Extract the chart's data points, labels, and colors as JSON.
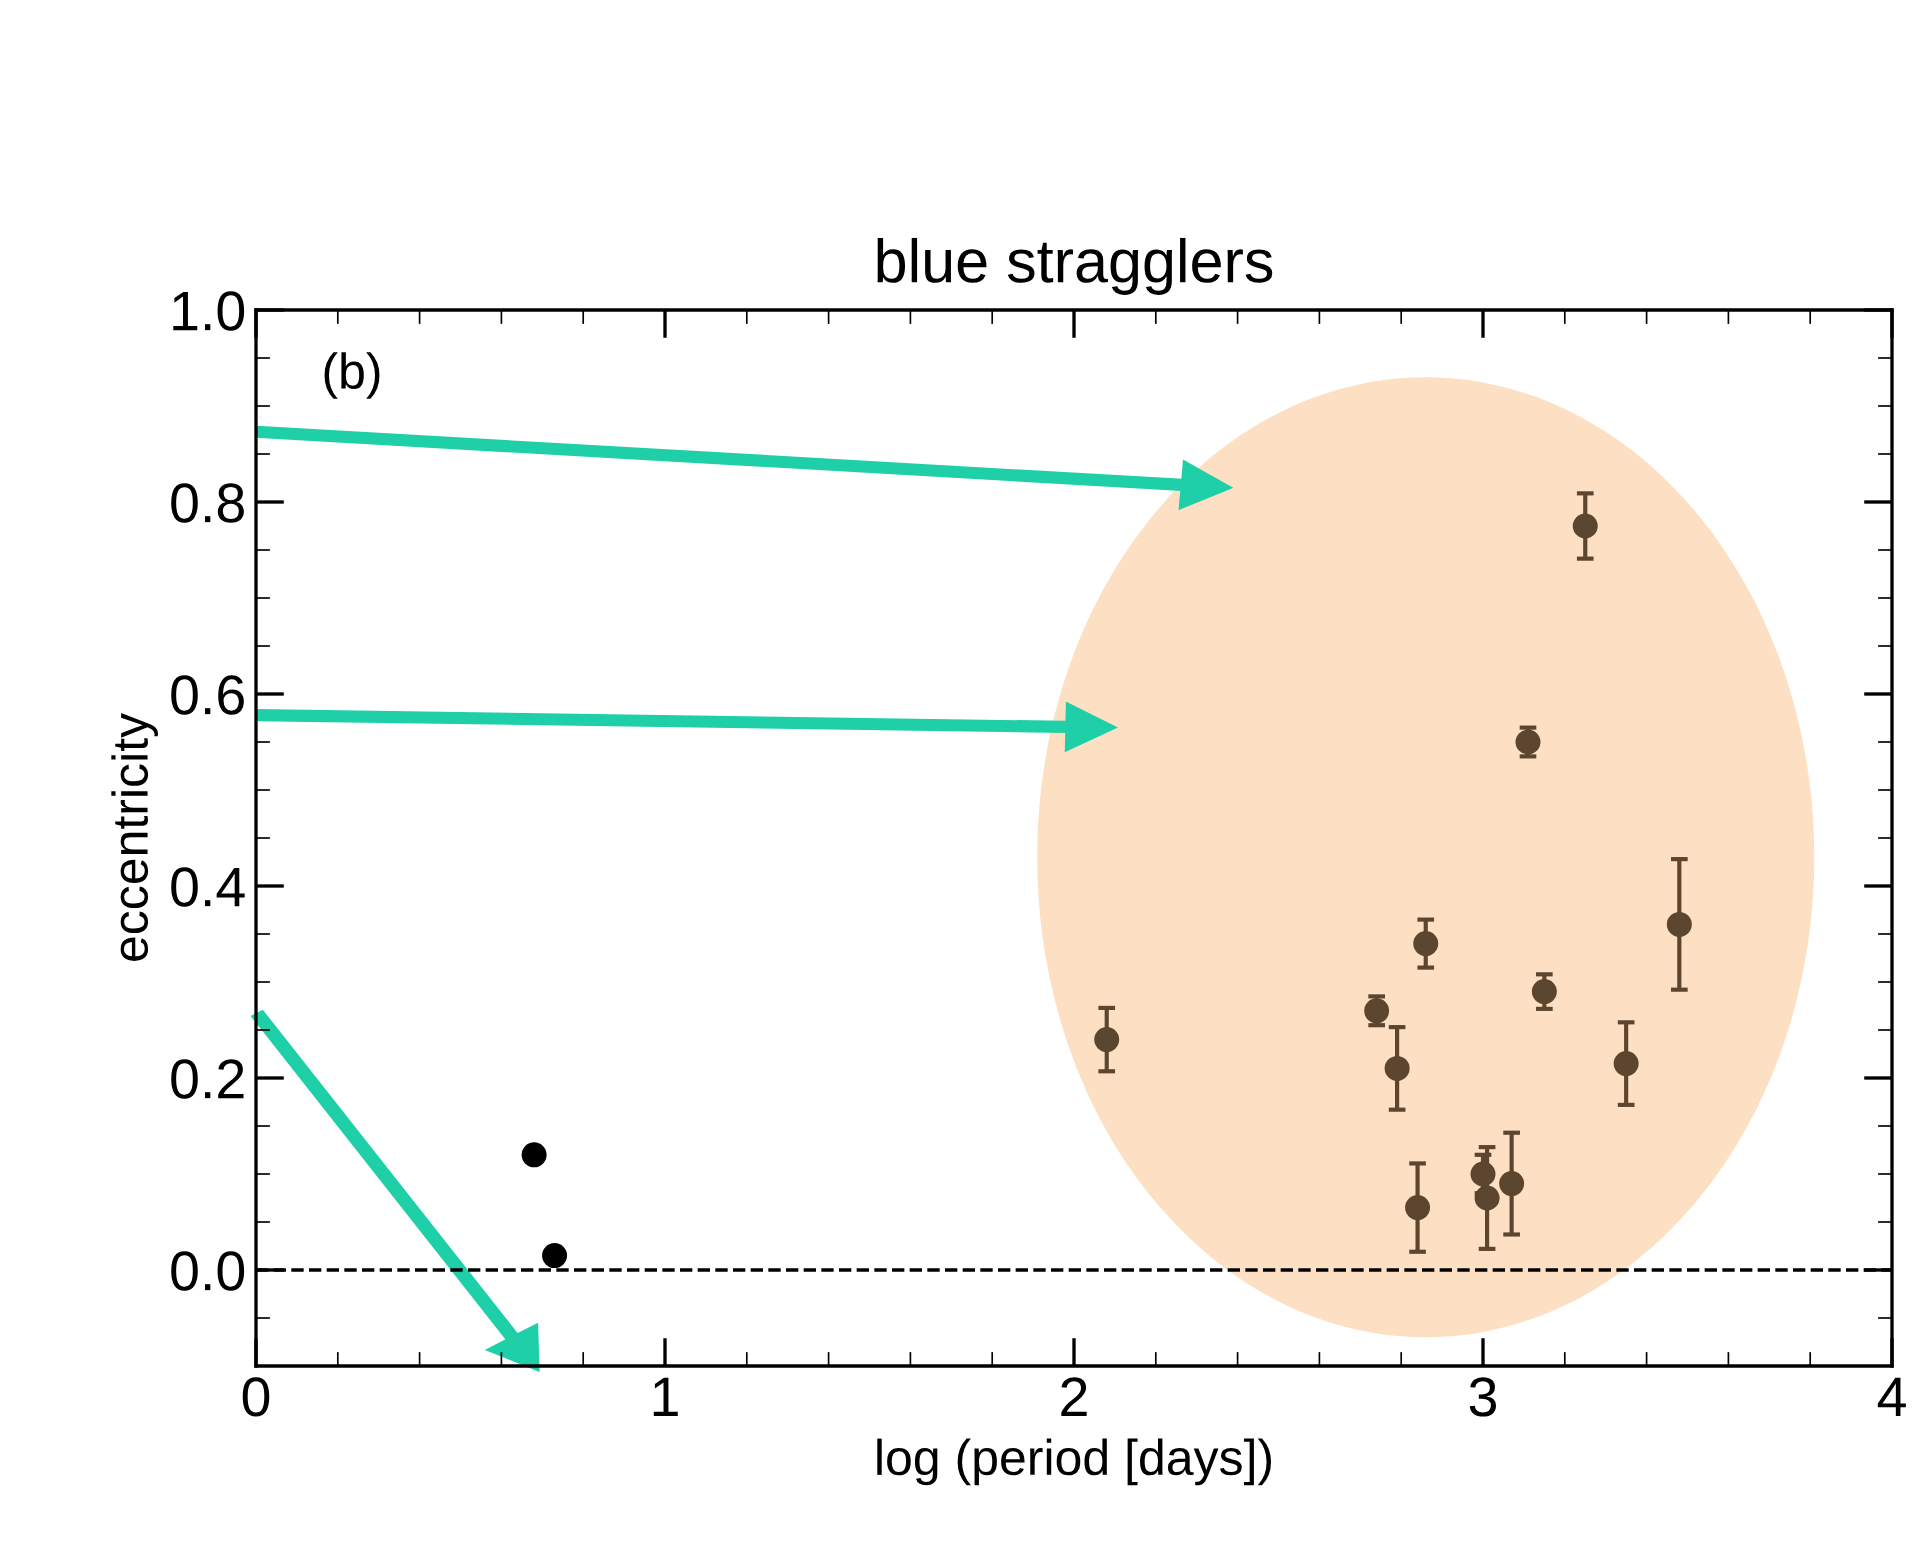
{
  "chart_data": {
    "type": "scatter",
    "title": "blue stragglers",
    "xlabel": "log (period [days])",
    "ylabel": "eccentricity",
    "annotations": [
      "(b)"
    ],
    "xlim": [
      0,
      4
    ],
    "xticks": [
      0,
      1,
      2,
      3,
      4
    ],
    "ylim": [
      -0.1,
      1.0
    ],
    "yticks": [
      {
        "value": 0.0,
        "label": "0.0"
      },
      {
        "value": 0.2,
        "label": "0.2"
      },
      {
        "value": 0.4,
        "label": "0.4"
      },
      {
        "value": 0.6,
        "label": "0.6"
      },
      {
        "value": 0.8,
        "label": "0.8"
      },
      {
        "value": 1.0,
        "label": "1.0"
      }
    ],
    "grid": false,
    "legend": false,
    "marker": "circle",
    "ref_lines": [
      {
        "axis": "y",
        "value": 0,
        "color": "#000000",
        "line_style": "dashed"
      }
    ],
    "series": [
      {
        "color": "#5c4630",
        "x": [
          2.08,
          2.74,
          2.79,
          2.84,
          2.86,
          3.0,
          3.01,
          3.07,
          3.11,
          3.15,
          3.25,
          3.35,
          3.48
        ],
        "values": [
          0.24,
          0.27,
          0.21,
          0.065,
          0.34,
          0.1,
          0.075,
          0.09,
          0.55,
          0.29,
          0.775,
          0.215,
          0.36
        ],
        "errors": [
          0.033,
          0.015,
          0.043,
          0.046,
          0.025,
          0.02,
          0.053,
          0.053,
          0.015,
          0.018,
          0.034,
          0.043,
          0.068
        ]
      },
      {
        "color": "#000000",
        "x": [
          0.68,
          0.73
        ],
        "values": [
          0.12,
          0.015
        ]
      }
    ]
  }
}
